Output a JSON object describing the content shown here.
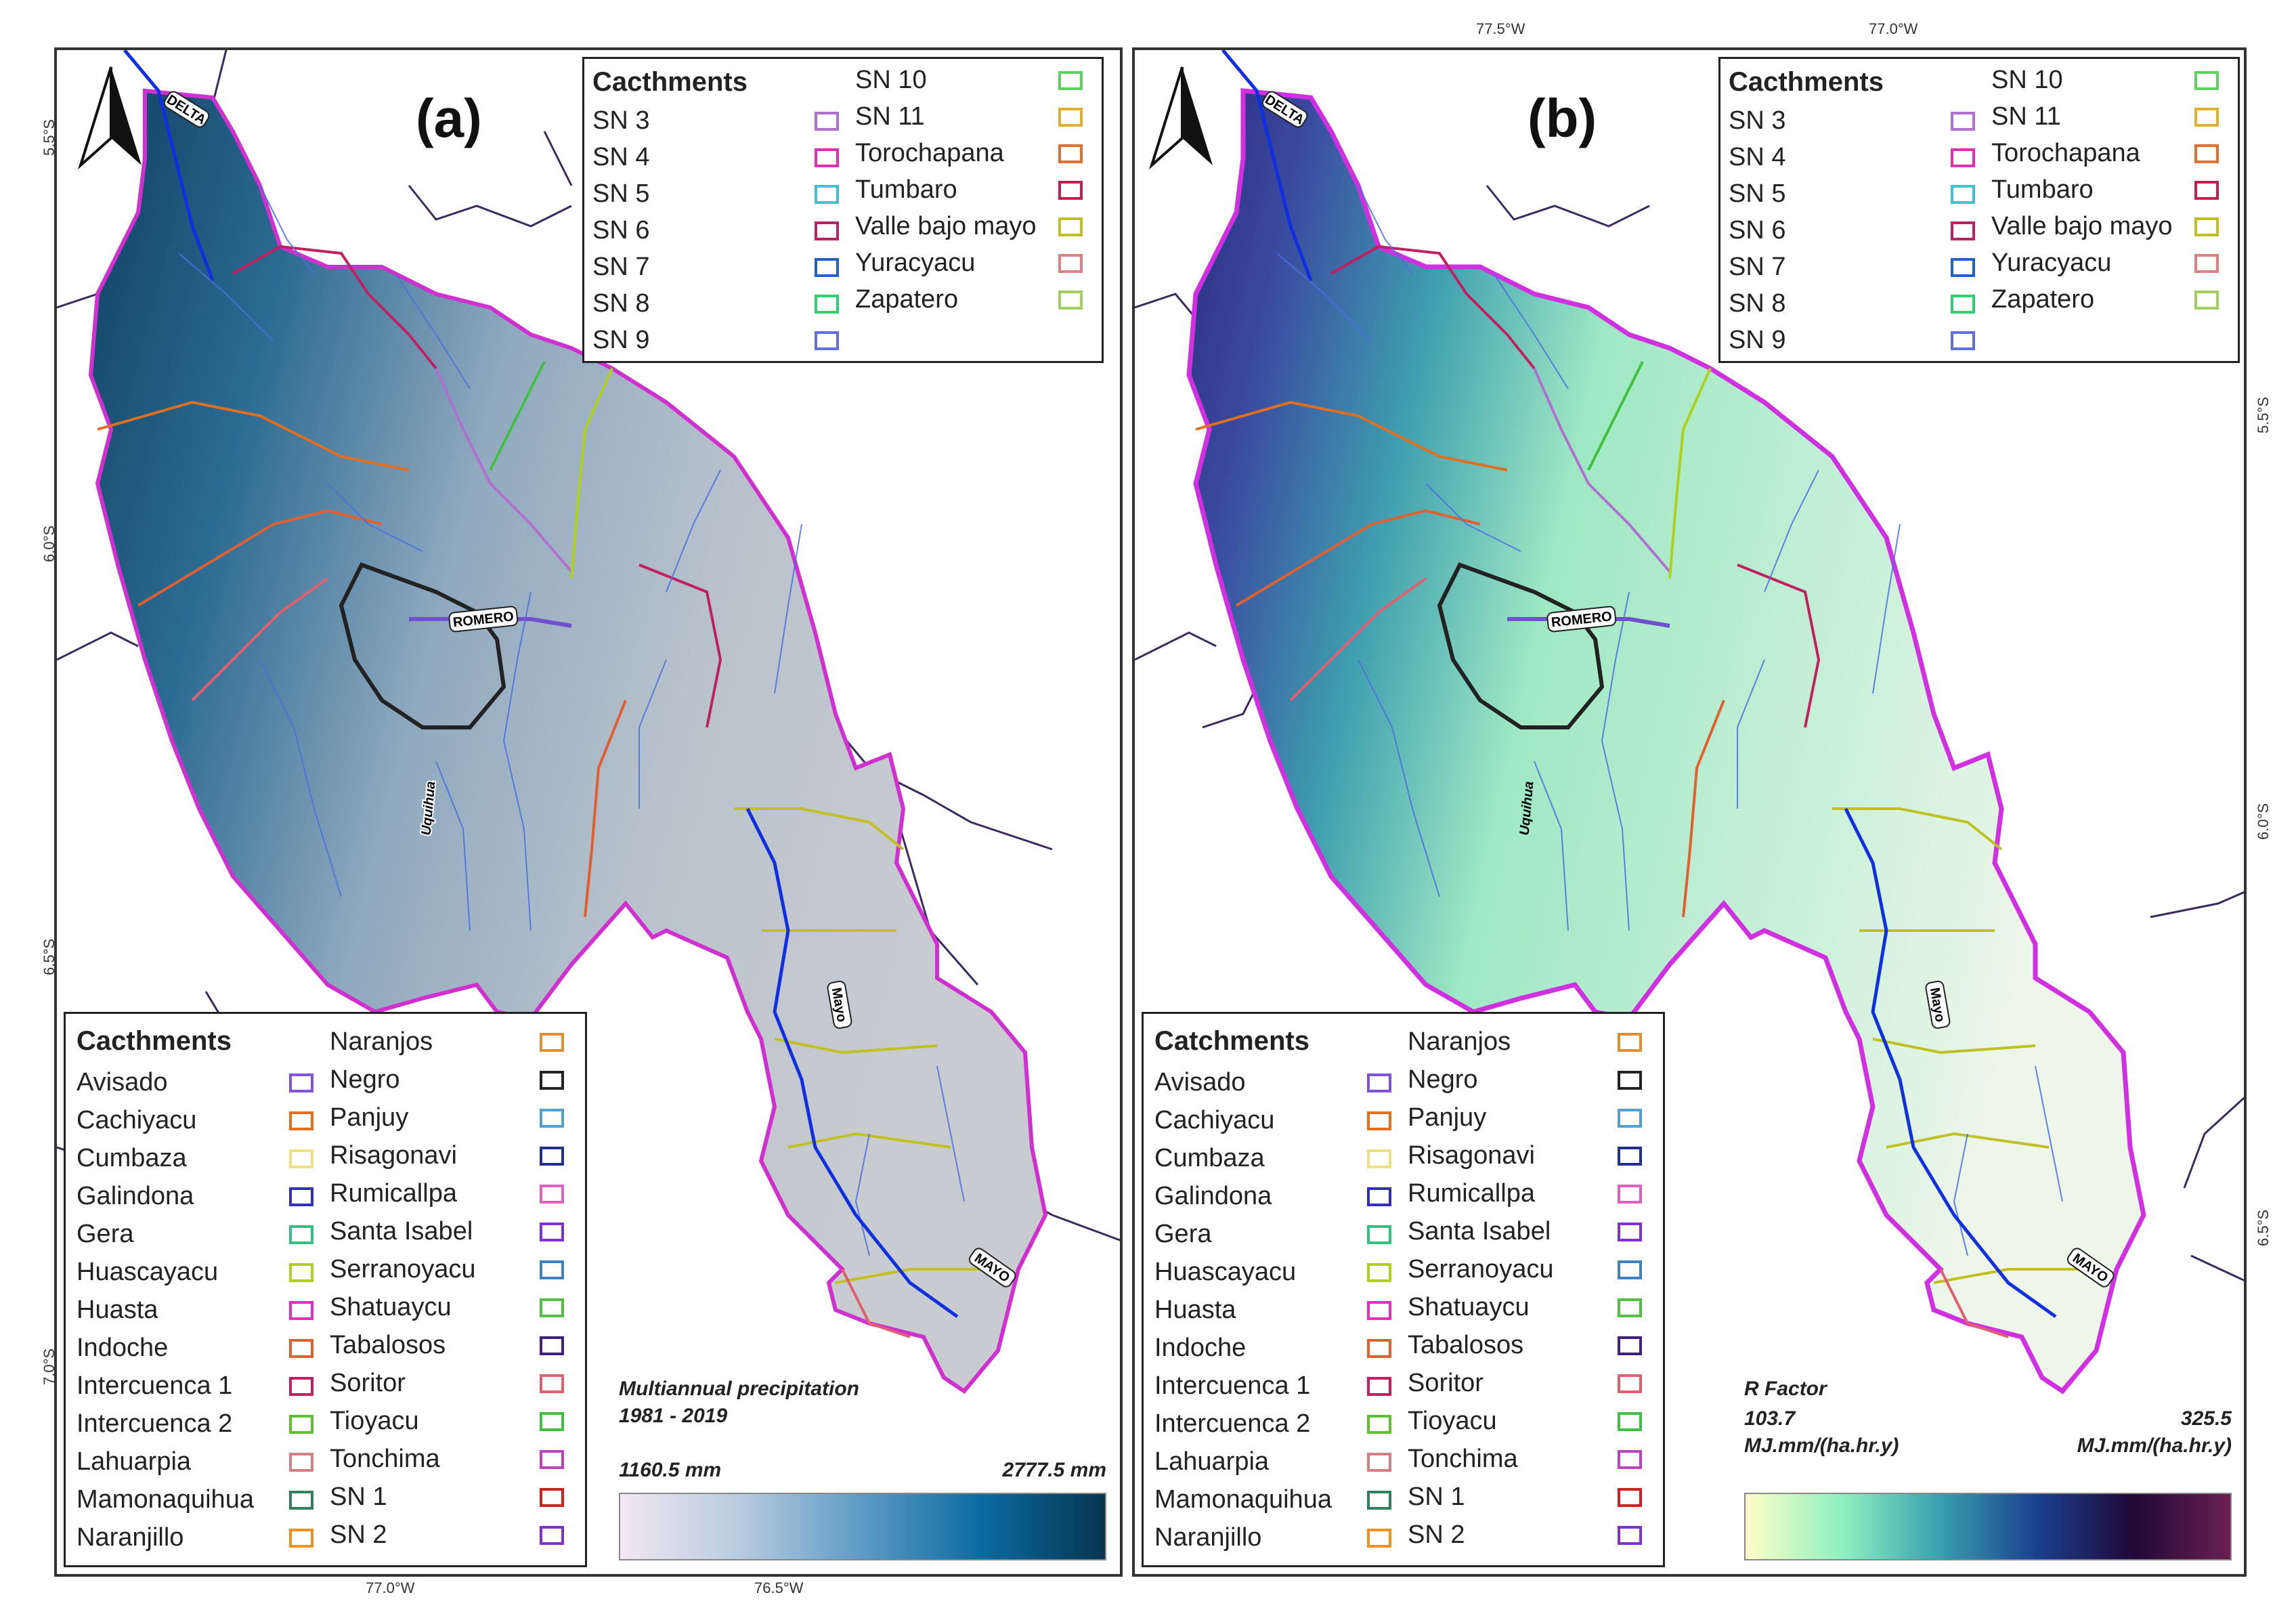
{
  "panels": [
    {
      "tag": "(a)",
      "top_legend": {
        "title": "Cacthments",
        "col1": [
          "SN 3",
          "SN 4",
          "SN 5",
          "SN 6",
          "SN 7",
          "SN 8",
          "SN 9"
        ],
        "col2": [
          "SN 10",
          "SN 11",
          "Torochapana",
          "Tumbaro",
          "Valle bajo mayo",
          "Yuracyacu",
          "Zapatero"
        ],
        "col1_colors": [
          "#b070d0",
          "#e030b0",
          "#40c0d0",
          "#c02060",
          "#2060d0",
          "#30d070",
          "#6070e0"
        ],
        "col2_colors": [
          "#60d060",
          "#e0b030",
          "#e07030",
          "#c02050",
          "#c0c020",
          "#e08080",
          "#a0d060"
        ]
      },
      "bottom_legend": {
        "title": "Cacthments",
        "col1": [
          "Avisado",
          "Cachiyacu",
          "Cumbaza",
          "Galindona",
          "Gera",
          "Huascayacu",
          "Huasta",
          "Indoche",
          "Intercuenca 1",
          "Intercuenca 2",
          "Lahuarpia",
          "Mamonaquihua",
          "Naranjillo"
        ],
        "col2": [
          "Naranjos",
          "Negro",
          "Panjuy",
          "Risagonavi",
          "Rumicallpa",
          "Santa Isabel",
          "Serranoyacu",
          "Shatuaycu",
          "Tabalosos",
          "Soritor",
          "Tioyacu",
          "Tonchima",
          "SN 1",
          "SN 2"
        ],
        "col1_colors": [
          "#8050e0",
          "#e07020",
          "#f0e080",
          "#3030c0",
          "#30c080",
          "#b0d020",
          "#e030c0",
          "#e06030",
          "#c02060",
          "#60c030",
          "#d08080",
          "#308060",
          "#f09020"
        ],
        "col2_colors": [
          "#e09030",
          "#222222",
          "#50a0d0",
          "#203090",
          "#e060c0",
          "#8030d0",
          "#4080c0",
          "#50c040",
          "#402080",
          "#e06070",
          "#40c040",
          "#c040c0",
          "#d02020",
          "#8030d0"
        ]
      },
      "scale": {
        "title_line1": "Multiannual precipitation",
        "title_line2": "1981 - 2019",
        "min": "1160.5 mm",
        "max": "2777.5 mm",
        "min_unit": "",
        "max_unit": "",
        "colors": [
          "#f2e8f2",
          "#b6cbe0",
          "#5d9ac5",
          "#0a6aa0",
          "#063550"
        ]
      },
      "ticks_bottom": [
        "77.0°W",
        "76.5°W"
      ],
      "ticks_left": [
        "5.5°S",
        "6.0°S",
        "6.5°S",
        "7.0°S"
      ],
      "rivers": [
        "DELTA",
        "ROMERO",
        "Uquihua",
        "Mayo",
        "MAYO"
      ]
    },
    {
      "tag": "(b)",
      "top_legend": {
        "title": "Cacthments",
        "col1": [
          "SN 3",
          "SN 4",
          "SN 5",
          "SN 6",
          "SN 7",
          "SN 8",
          "SN 9"
        ],
        "col2": [
          "SN 10",
          "SN 11",
          "Torochapana",
          "Tumbaro",
          "Valle bajo mayo",
          "Yuracyacu",
          "Zapatero"
        ],
        "col1_colors": [
          "#b070d0",
          "#e030b0",
          "#40c0d0",
          "#c02060",
          "#2060d0",
          "#30d070",
          "#6070e0"
        ],
        "col2_colors": [
          "#60d060",
          "#e0b030",
          "#e07030",
          "#c02050",
          "#c0c020",
          "#e08080",
          "#a0d060"
        ]
      },
      "bottom_legend": {
        "title": "Catchments",
        "col1": [
          "Avisado",
          "Cachiyacu",
          "Cumbaza",
          "Galindona",
          "Gera",
          "Huascayacu",
          "Huasta",
          "Indoche",
          "Intercuenca 1",
          "Intercuenca 2",
          "Lahuarpia",
          "Mamonaquihua",
          "Naranjillo"
        ],
        "col2": [
          "Naranjos",
          "Negro",
          "Panjuy",
          "Risagonavi",
          "Rumicallpa",
          "Santa Isabel",
          "Serranoyacu",
          "Shatuaycu",
          "Tabalosos",
          "Soritor",
          "Tioyacu",
          "Tonchima",
          "SN 1",
          "SN 2"
        ],
        "col1_colors": [
          "#8050e0",
          "#e07020",
          "#f0e080",
          "#3030c0",
          "#30c080",
          "#b0d020",
          "#e030c0",
          "#e06030",
          "#c02060",
          "#60c030",
          "#d08080",
          "#308060",
          "#f09020"
        ],
        "col2_colors": [
          "#e09030",
          "#222222",
          "#50a0d0",
          "#203090",
          "#e060c0",
          "#8030d0",
          "#4080c0",
          "#50c040",
          "#402080",
          "#e06070",
          "#40c040",
          "#c040c0",
          "#d02020",
          "#8030d0"
        ]
      },
      "scale": {
        "title_line1": "R Factor",
        "title_line2": "",
        "min": "103.7",
        "max": "325.5",
        "min_unit": "MJ.mm/(ha.hr.y)",
        "max_unit": "MJ.mm/(ha.hr.y)",
        "colors": [
          "#ffffc8",
          "#8ef0c0",
          "#3aa0b0",
          "#1a4090",
          "#200838",
          "#6a2050"
        ]
      },
      "ticks_top": [
        "77.5°W",
        "77.0°W"
      ],
      "ticks_right": [
        "5.5°S",
        "6.0°S",
        "6.5°S"
      ],
      "rivers": [
        "DELTA",
        "ROMERO",
        "Uquihua",
        "Mayo",
        "MAYO"
      ]
    }
  ]
}
